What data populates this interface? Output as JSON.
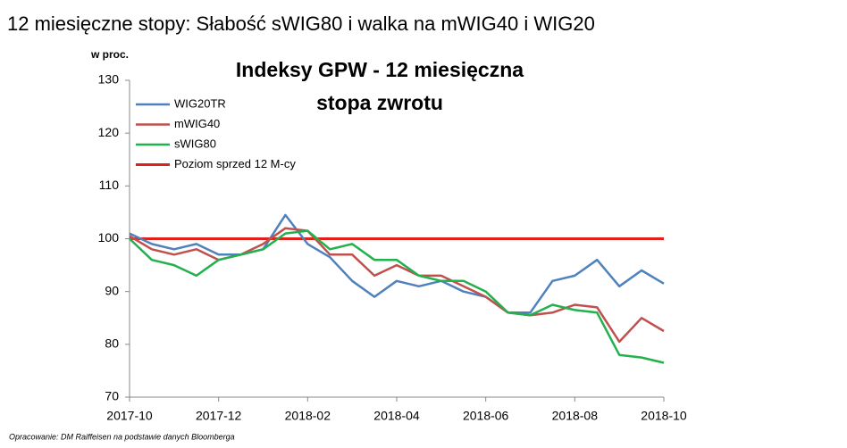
{
  "slide_title": "12 miesięczne stopy:  Słabość sWIG80 i walka na mWIG40 i WIG20",
  "footer": "Opracowanie: DM Raiffeisen na podstawie danych Bloomberga",
  "chart_data": {
    "type": "line",
    "title": [
      "Indeksy GPW - 12 miesięczna",
      "stopa zwrotu"
    ],
    "y_label": "w proc.",
    "x": [
      0,
      0.5,
      1,
      1.5,
      2,
      2.5,
      3,
      3.5,
      4,
      4.5,
      5,
      5.5,
      6,
      6.5,
      7,
      7.5,
      8,
      8.5,
      9,
      9.5,
      10,
      10.5,
      11,
      11.5,
      12
    ],
    "xlim": [
      0,
      12
    ],
    "xticks": [
      {
        "value": 0,
        "label": "2017-10"
      },
      {
        "value": 2,
        "label": "2017-12"
      },
      {
        "value": 4,
        "label": "2018-02"
      },
      {
        "value": 6,
        "label": "2018-04"
      },
      {
        "value": 8,
        "label": "2018-06"
      },
      {
        "value": 10,
        "label": "2018-08"
      },
      {
        "value": 12,
        "label": "2018-10"
      }
    ],
    "ylim": [
      70,
      130
    ],
    "yticks": [
      70,
      80,
      90,
      100,
      110,
      120,
      130
    ],
    "legend": "upper left",
    "series": [
      {
        "name": "WIG20TR",
        "color": "#4f81bd",
        "width": 2.5,
        "values": [
          101,
          99,
          98,
          99,
          97,
          97,
          98,
          104.5,
          99,
          96.5,
          92,
          89,
          92,
          91,
          92,
          90,
          89,
          86,
          86,
          92,
          93,
          96,
          91,
          94,
          91.5
        ]
      },
      {
        "name": "mWIG40",
        "color": "#c0504d",
        "width": 2.5,
        "values": [
          100.5,
          98,
          97,
          98,
          96,
          97,
          99,
          102,
          101.5,
          97,
          97,
          93,
          95,
          93,
          93,
          91,
          89,
          86,
          85.5,
          86,
          87.5,
          87,
          80.5,
          85,
          82.5
        ]
      },
      {
        "name": "sWIG80",
        "color": "#22b14c",
        "width": 2.5,
        "values": [
          100,
          96,
          95,
          93,
          96,
          97,
          98,
          101,
          101.5,
          98,
          99,
          96,
          96,
          93,
          92,
          92,
          90,
          86,
          85.5,
          87.5,
          86.5,
          86,
          78,
          77.5,
          76.5
        ]
      },
      {
        "name": "Poziom sprzed 12 M-cy",
        "color": "#e0201b",
        "width": 3,
        "values": [
          100,
          100,
          100,
          100,
          100,
          100,
          100,
          100,
          100,
          100,
          100,
          100,
          100,
          100,
          100,
          100,
          100,
          100,
          100,
          100,
          100,
          100,
          100,
          100,
          100
        ]
      }
    ]
  }
}
